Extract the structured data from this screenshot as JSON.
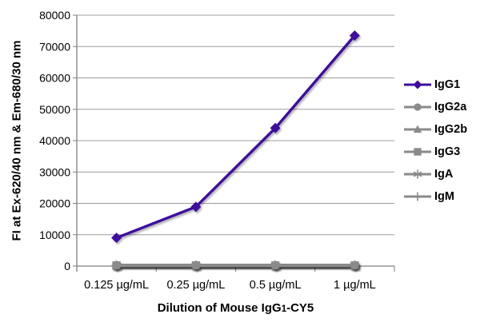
{
  "chart_data": {
    "type": "line",
    "title": "",
    "xlabel": "Dilution of Mouse IgG1-CY5",
    "xlabel_parts": {
      "prefix": "Dilution of Mouse IgG",
      "subscript": "1",
      "suffix": "-CY5"
    },
    "ylabel": "FI at Ex-620/40 nm & Em-680/30 nm",
    "categories": [
      "0.125 µg/mL",
      "0.25 µg/mL",
      "0.5 µg/mL",
      "1 µg/mL"
    ],
    "ylim": [
      0,
      80000
    ],
    "y_ticks": [
      0,
      10000,
      20000,
      30000,
      40000,
      50000,
      60000,
      70000,
      80000
    ],
    "grid": "horizontal",
    "legend_position": "right",
    "axis_color": "#7f7f7f",
    "grid_color": "#9c9c9c",
    "text_color": "#000000",
    "series": [
      {
        "name": "IgG1",
        "marker": "diamond",
        "color": "#3c0d9d",
        "values": [
          9000,
          18900,
          44000,
          73500
        ]
      },
      {
        "name": "IgG2a",
        "marker": "circle",
        "color": "#8a8a8a",
        "values": [
          200,
          200,
          200,
          200
        ]
      },
      {
        "name": "IgG2b",
        "marker": "triangle",
        "color": "#8a8a8a",
        "values": [
          200,
          200,
          200,
          200
        ]
      },
      {
        "name": "IgG3",
        "marker": "square",
        "color": "#8a8a8a",
        "values": [
          200,
          200,
          200,
          200
        ]
      },
      {
        "name": "IgA",
        "marker": "asterisk",
        "color": "#8a8a8a",
        "values": [
          200,
          200,
          200,
          200
        ]
      },
      {
        "name": "IgM",
        "marker": "plus",
        "color": "#8a8a8a",
        "values": [
          200,
          200,
          200,
          200
        ]
      }
    ]
  }
}
